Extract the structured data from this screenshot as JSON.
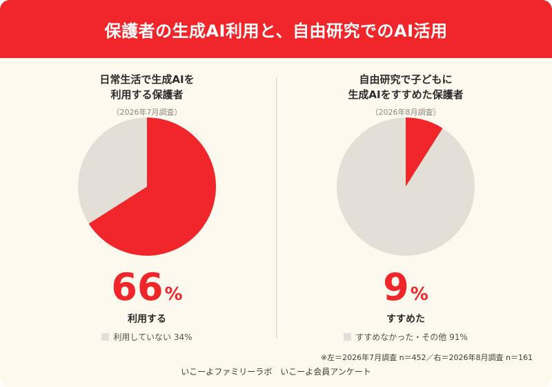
{
  "header": {
    "title": "保護者の生成AI利用と、自由研究でのAI活用"
  },
  "colors": {
    "accent": "#f0262a",
    "rest": "#e3dfd6",
    "background": "#fdf9ef"
  },
  "chart_data": [
    {
      "type": "pie",
      "title_lines": [
        "日常生活で生成AIを",
        "利用する保護者"
      ],
      "survey": "（2026年7月調査）",
      "slices": [
        {
          "label": "利用する",
          "value": 66
        },
        {
          "label": "利用していない",
          "value": 34
        }
      ],
      "big_number": "66",
      "unit": "%",
      "caption": "利用する",
      "legend": "利用していない 34%"
    },
    {
      "type": "pie",
      "title_lines": [
        "自由研究で子どもに",
        "生成AIをすすめた保護者"
      ],
      "survey": "（2026年8月調査）",
      "slices": [
        {
          "label": "すすめた",
          "value": 9
        },
        {
          "label": "すすめなかった・その他",
          "value": 91
        }
      ],
      "big_number": "9",
      "unit": "%",
      "caption": "すすめた",
      "legend": "すすめなかった・その他 91%"
    }
  ],
  "footnote": "※左＝2026年7月調査 n＝452／右＝2026年8月調査 n＝161",
  "footer": "いこーよファミリーラボ　いこーよ会員アンケート"
}
